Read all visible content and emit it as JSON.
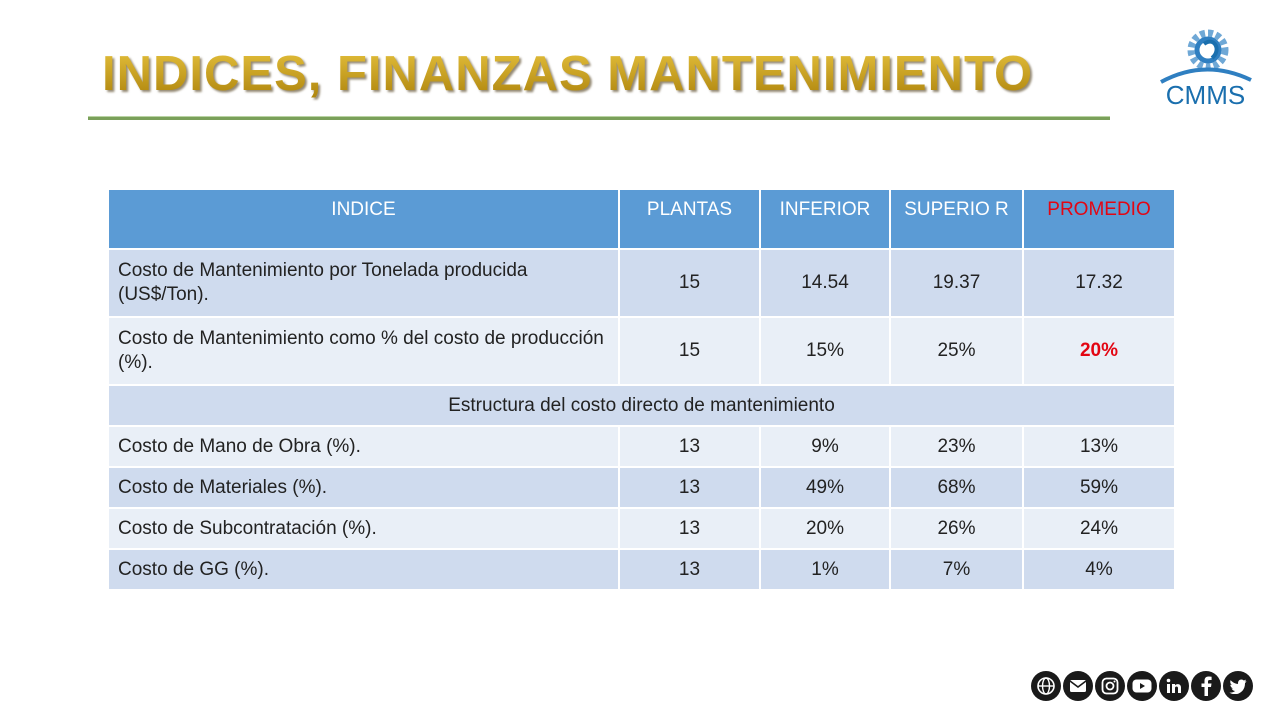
{
  "slide": {
    "title": "INDICES, FINANZAS MANTENIMIENTO",
    "logo_text": "CMMS"
  },
  "table": {
    "headers": [
      "INDICE",
      "PLANTAS",
      "INFERIOR",
      "SUPERIO R",
      "PROMEDIO"
    ],
    "rows": [
      {
        "indice": "Costo de Mantenimiento por Tonelada producida (US$/Ton).",
        "plantas": "15",
        "inferior": "14.54",
        "superior": "19.37",
        "promedio": "17.32"
      },
      {
        "indice": "Costo de Mantenimiento como % del costo de producción (%).",
        "plantas": "15",
        "inferior": "15%",
        "superior": "25%",
        "promedio": "20%"
      }
    ],
    "section_label": "Estructura del costo directo de mantenimiento",
    "section_rows": [
      {
        "indice": "Costo de Mano de Obra (%).",
        "plantas": "13",
        "inferior": "9%",
        "superior": "23%",
        "promedio": "13%"
      },
      {
        "indice": "Costo de Materiales (%).",
        "plantas": "13",
        "inferior": "49%",
        "superior": "68%",
        "promedio": "59%"
      },
      {
        "indice": "Costo de Subcontratación (%).",
        "plantas": "13",
        "inferior": "20%",
        "superior": "26%",
        "promedio": "24%"
      },
      {
        "indice": "Costo de GG (%).",
        "plantas": "13",
        "inferior": "1%",
        "superior": "7%",
        "promedio": "4%"
      }
    ]
  },
  "social_icons": [
    "globe-icon",
    "email-icon",
    "instagram-icon",
    "youtube-icon",
    "linkedin-icon",
    "facebook-icon",
    "twitter-icon"
  ],
  "colors": {
    "header_bg": "#5b9bd5",
    "row_dark": "#cfdbee",
    "row_light": "#e9eff7",
    "highlight_red": "#e30613",
    "title_gold": "#c39a12"
  }
}
